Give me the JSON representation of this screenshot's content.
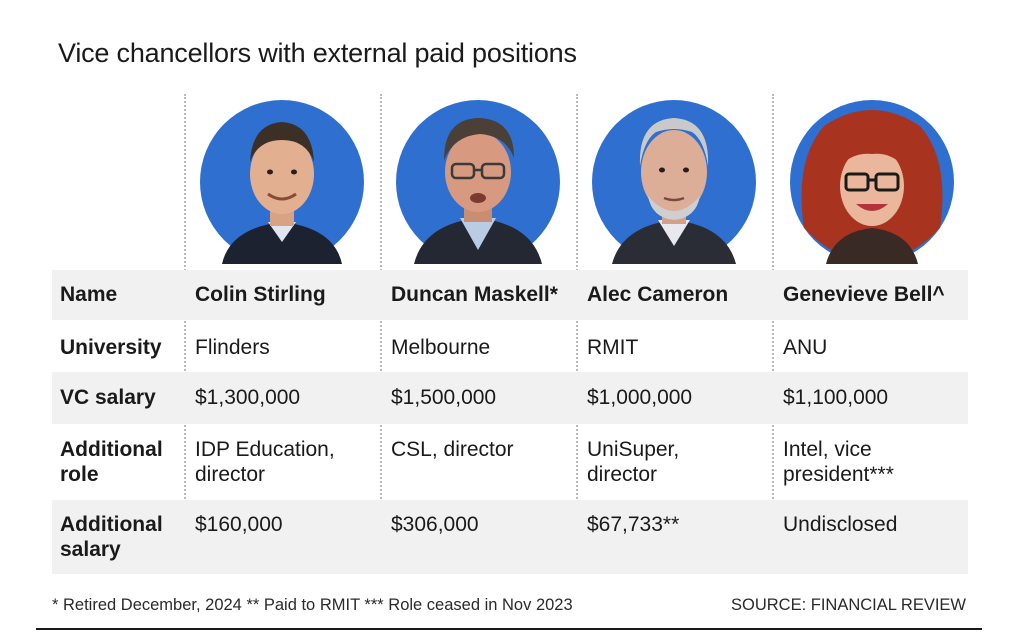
{
  "title": "Vice chancellors with external paid positions",
  "row_labels": {
    "name": "Name",
    "university": "University",
    "vc_salary": "VC salary",
    "additional_role": "Additional\nrole",
    "additional_salary": "Additional\nsalary"
  },
  "people": [
    {
      "name": "Colin Stirling",
      "university": "Flinders",
      "vc_salary": "$1,300,000",
      "additional_role": "IDP Education,\ndirector",
      "additional_salary": "$160,000",
      "photo_icon": "portrait-photo"
    },
    {
      "name": "Duncan Maskell*",
      "university": "Melbourne",
      "vc_salary": "$1,500,000",
      "additional_role": "CSL, director",
      "additional_salary": "$306,000",
      "photo_icon": "portrait-photo"
    },
    {
      "name": "Alec Cameron",
      "university": "RMIT",
      "vc_salary": "$1,000,000",
      "additional_role": "UniSuper,\ndirector",
      "additional_salary": "$67,733**",
      "photo_icon": "portrait-photo"
    },
    {
      "name": "Genevieve Bell^",
      "university": "ANU",
      "vc_salary": "$1,100,000",
      "additional_role": "Intel, vice\npresident***",
      "additional_salary": "Undisclosed",
      "photo_icon": "portrait-photo"
    }
  ],
  "footnote": "* Retired December, 2024  ** Paid to RMIT  *** Role ceased in Nov 2023",
  "source": "SOURCE: FINANCIAL REVIEW",
  "colors": {
    "photo_bg": "#2f6fd0",
    "row_shade": "#f1f1f1",
    "divider": "#b9b9b9"
  },
  "chart_data": {
    "type": "table",
    "title": "Vice chancellors with external paid positions",
    "columns": [
      "Name",
      "University",
      "VC salary",
      "Additional role",
      "Additional salary"
    ],
    "rows": [
      [
        "Colin Stirling",
        "Flinders",
        "$1,300,000",
        "IDP Education, director",
        "$160,000"
      ],
      [
        "Duncan Maskell*",
        "Melbourne",
        "$1,500,000",
        "CSL, director",
        "$306,000"
      ],
      [
        "Alec Cameron",
        "RMIT",
        "$1,000,000",
        "UniSuper, director",
        "$67,733**"
      ],
      [
        "Genevieve Bell^",
        "ANU",
        "$1,100,000",
        "Intel, vice president***",
        "Undisclosed"
      ]
    ]
  }
}
